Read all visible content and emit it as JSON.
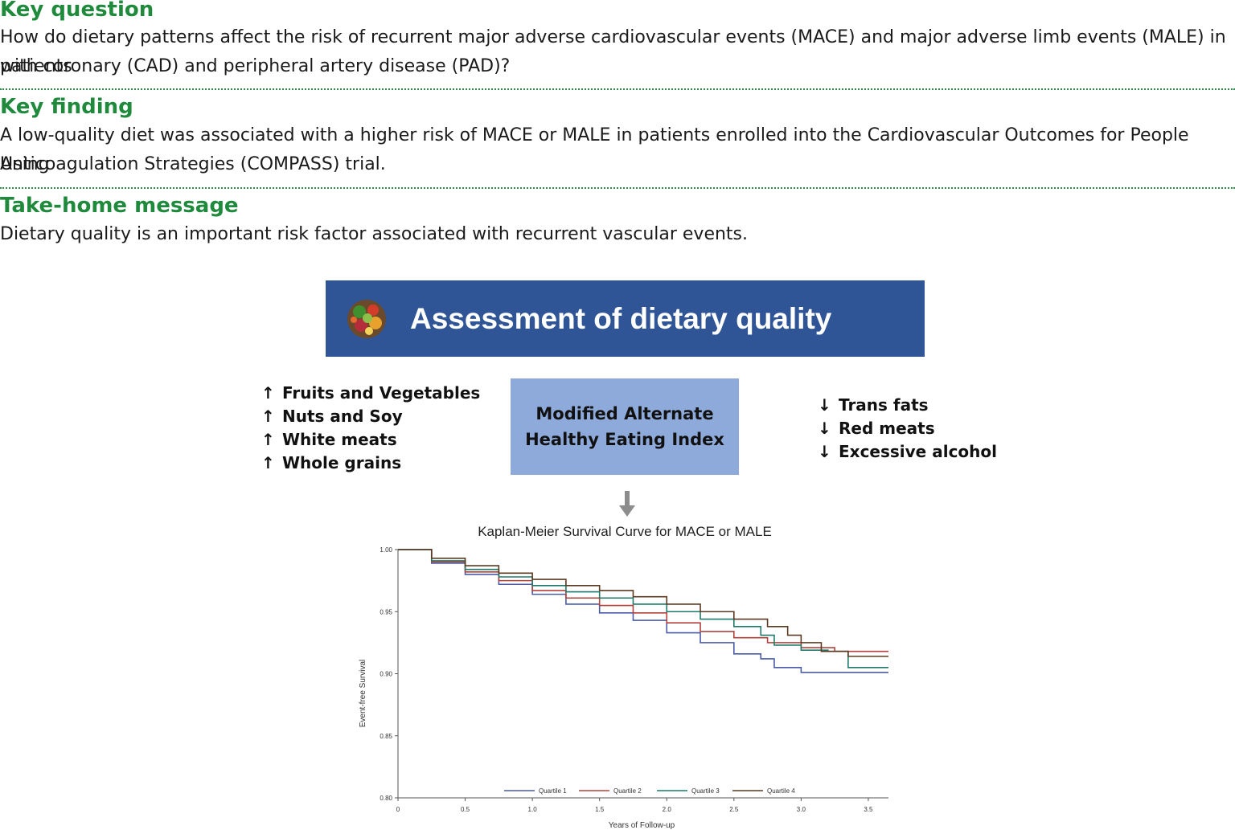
{
  "key_question": {
    "heading": "Key question",
    "line1": "How do dietary patterns affect the risk of recurrent major adverse cardiovascular events (MACE) and major adverse limb events (MALE) in patients",
    "line2": "with coronary (CAD) and peripheral artery disease (PAD)?"
  },
  "key_finding": {
    "heading": "Key finding",
    "line1": "A low-quality diet was associated with a higher risk of MACE or MALE in patients enrolled into the Cardiovascular Outcomes for People Using",
    "line2": "Anticoagulation Strategies (COMPASS) trial."
  },
  "take_home": {
    "heading": "Take-home message",
    "line1": "Dietary quality is an important risk factor associated with recurrent vascular events."
  },
  "banner": {
    "title": "Assessment of dietary quality",
    "icon": "vegetables-bowl-icon"
  },
  "increase_list": {
    "arrow": "↑",
    "items": [
      "Fruits and Vegetables",
      "Nuts and Soy",
      "White meats",
      "Whole grains"
    ]
  },
  "decrease_list": {
    "arrow": "↓",
    "items": [
      "Trans fats",
      "Red meats",
      "Excessive alcohol"
    ]
  },
  "index_box": {
    "line1": "Modified Alternate",
    "line2": "Healthy Eating Index"
  },
  "colors": {
    "heading_green": "#1f8a3c",
    "banner_blue": "#2f5597",
    "box_blue": "#8eaadb",
    "arrow_gray": "#8c8c8c"
  },
  "chart_data": {
    "type": "line",
    "title": "Kaplan-Meier Survival Curve for MACE or MALE",
    "xlabel": "Years of Follow-up",
    "ylabel": "Event-free Survival",
    "xlim": [
      0,
      3.65
    ],
    "ylim": [
      0.8,
      1.0
    ],
    "x_ticks": [
      0,
      0.5,
      1.0,
      1.5,
      2.0,
      2.5,
      3.0,
      3.5
    ],
    "x_tick_labels": [
      "0",
      "0.5",
      "1.0",
      "1.5",
      "2.0",
      "2.5",
      "3.0",
      "3.5"
    ],
    "y_ticks": [
      0.8,
      0.85,
      0.9,
      0.95,
      1.0
    ],
    "y_tick_labels": [
      "0.80",
      "0.85",
      "0.90",
      "0.95",
      "1.00"
    ],
    "grid": false,
    "legend_position": "bottom",
    "series": [
      {
        "name": "Quartile 1",
        "color": "#4a5ba8",
        "x": [
          0,
          0.25,
          0.5,
          0.75,
          1.0,
          1.25,
          1.5,
          1.75,
          2.0,
          2.25,
          2.5,
          2.7,
          2.8,
          3.0,
          3.65
        ],
        "y": [
          1.0,
          0.989,
          0.98,
          0.972,
          0.964,
          0.956,
          0.949,
          0.943,
          0.933,
          0.925,
          0.916,
          0.912,
          0.905,
          0.901,
          0.901
        ]
      },
      {
        "name": "Quartile 2",
        "color": "#b3423c",
        "x": [
          0,
          0.25,
          0.5,
          0.75,
          1.0,
          1.25,
          1.5,
          1.75,
          2.0,
          2.25,
          2.5,
          2.75,
          3.0,
          3.25,
          3.5,
          3.65
        ],
        "y": [
          1.0,
          0.99,
          0.982,
          0.975,
          0.967,
          0.961,
          0.955,
          0.949,
          0.941,
          0.934,
          0.929,
          0.925,
          0.921,
          0.918,
          0.918,
          0.918
        ]
      },
      {
        "name": "Quartile 3",
        "color": "#1f7a6a",
        "x": [
          0,
          0.25,
          0.5,
          0.75,
          1.0,
          1.25,
          1.5,
          1.75,
          2.0,
          2.25,
          2.5,
          2.7,
          2.8,
          3.0,
          3.2,
          3.35,
          3.65
        ],
        "y": [
          1.0,
          0.991,
          0.984,
          0.978,
          0.971,
          0.966,
          0.961,
          0.956,
          0.95,
          0.944,
          0.938,
          0.931,
          0.923,
          0.919,
          0.918,
          0.905,
          0.905
        ]
      },
      {
        "name": "Quartile 4",
        "color": "#5c3a22",
        "x": [
          0,
          0.25,
          0.5,
          0.75,
          1.0,
          1.25,
          1.5,
          1.75,
          2.0,
          2.25,
          2.5,
          2.75,
          2.9,
          3.0,
          3.15,
          3.35,
          3.5,
          3.65
        ],
        "y": [
          1.0,
          0.993,
          0.987,
          0.981,
          0.976,
          0.971,
          0.967,
          0.962,
          0.956,
          0.95,
          0.944,
          0.938,
          0.931,
          0.925,
          0.918,
          0.914,
          0.914,
          0.914
        ]
      }
    ]
  }
}
